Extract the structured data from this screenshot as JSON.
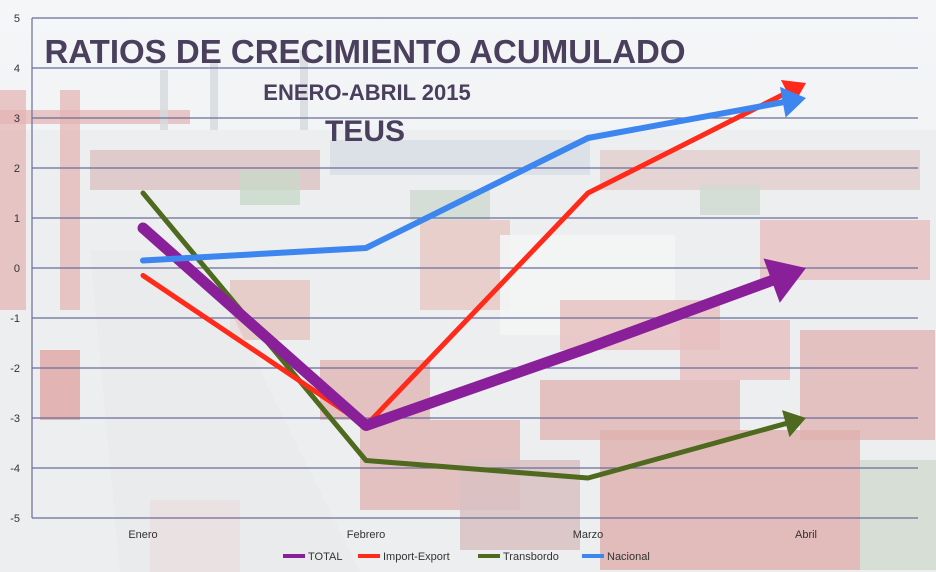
{
  "chart_data": {
    "type": "line",
    "title": "RATIOS DE CRECIMIENTO ACUMULADO",
    "subtitle": "ENERO-ABRIL 2015",
    "unit": "TEUS",
    "categories": [
      "Enero",
      "Febrero",
      "Marzo",
      "Abril"
    ],
    "ylim": [
      -5,
      5
    ],
    "yticks": [
      "-5",
      "-4",
      "-3",
      "-2",
      "-1",
      "0",
      "1",
      "2",
      "3",
      "4",
      "5"
    ],
    "grid": true,
    "legend_position": "bottom",
    "series": [
      {
        "name": "TOTAL",
        "color": "#8a1f9a",
        "values": [
          0.8,
          -3.15,
          -1.6,
          0.0
        ]
      },
      {
        "name": "Import-Export",
        "color": "#ff2a1a",
        "values": [
          -0.15,
          -3.15,
          1.5,
          3.7
        ]
      },
      {
        "name": "Transbordo",
        "color": "#4f6a1e",
        "values": [
          1.5,
          -3.85,
          -4.2,
          -3.0
        ]
      },
      {
        "name": "Nacional",
        "color": "#3d86f0",
        "values": [
          0.15,
          0.4,
          2.6,
          3.4
        ]
      }
    ]
  }
}
